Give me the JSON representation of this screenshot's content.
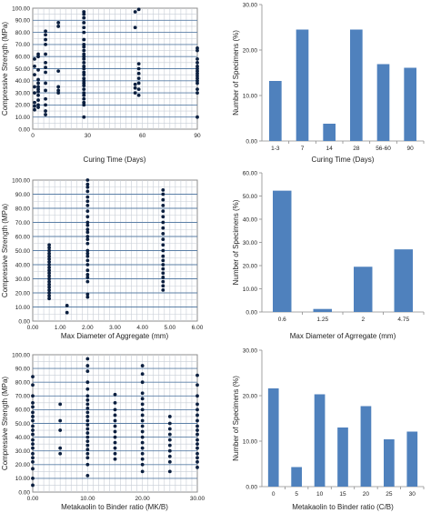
{
  "chart_data": [
    {
      "type": "scatter",
      "xlabel": "Curing Time (Days)",
      "ylabel": "Compressive Strength (MPa)",
      "xlim": [
        0,
        90
      ],
      "ylim": [
        0,
        100
      ],
      "xticks": [
        "0",
        "30",
        "60",
        "90"
      ],
      "yticks": [
        "0.00",
        "10.00",
        "20.00",
        "30.00",
        "40.00",
        "50.00",
        "60.00",
        "70.00",
        "80.00",
        "90.00",
        "100.00"
      ],
      "grid": true,
      "marker_color": "#0b1f3f",
      "points": [
        [
          1,
          16
        ],
        [
          1,
          19
        ],
        [
          1,
          22
        ],
        [
          1,
          30
        ],
        [
          1,
          35
        ],
        [
          1,
          45
        ],
        [
          1,
          52
        ],
        [
          1,
          58
        ],
        [
          3,
          18
        ],
        [
          3,
          20
        ],
        [
          3,
          24
        ],
        [
          3,
          28
        ],
        [
          3,
          31
        ],
        [
          3,
          33
        ],
        [
          3,
          35
        ],
        [
          3,
          38
        ],
        [
          3,
          41
        ],
        [
          3,
          49
        ],
        [
          3,
          60
        ],
        [
          3,
          62
        ],
        [
          7,
          12
        ],
        [
          7,
          15
        ],
        [
          7,
          20
        ],
        [
          7,
          25
        ],
        [
          7,
          32
        ],
        [
          7,
          38
        ],
        [
          7,
          47
        ],
        [
          7,
          51
        ],
        [
          7,
          55
        ],
        [
          7,
          62
        ],
        [
          7,
          70
        ],
        [
          7,
          74
        ],
        [
          7,
          78
        ],
        [
          7,
          81
        ],
        [
          14,
          30
        ],
        [
          14,
          32
        ],
        [
          14,
          35
        ],
        [
          14,
          48
        ],
        [
          14,
          85
        ],
        [
          14,
          88
        ],
        [
          28,
          10
        ],
        [
          28,
          20
        ],
        [
          28,
          22
        ],
        [
          28,
          25
        ],
        [
          28,
          28
        ],
        [
          28,
          30
        ],
        [
          28,
          33
        ],
        [
          28,
          36
        ],
        [
          28,
          38
        ],
        [
          28,
          40
        ],
        [
          28,
          42
        ],
        [
          28,
          45
        ],
        [
          28,
          47
        ],
        [
          28,
          50
        ],
        [
          28,
          52
        ],
        [
          28,
          55
        ],
        [
          28,
          58
        ],
        [
          28,
          60
        ],
        [
          28,
          62
        ],
        [
          28,
          65
        ],
        [
          28,
          68
        ],
        [
          28,
          70
        ],
        [
          28,
          74
        ],
        [
          28,
          80
        ],
        [
          28,
          84
        ],
        [
          28,
          88
        ],
        [
          28,
          92
        ],
        [
          28,
          95
        ],
        [
          28,
          97
        ],
        [
          56,
          30
        ],
        [
          56,
          34
        ],
        [
          56,
          37
        ],
        [
          56,
          84
        ],
        [
          56,
          97
        ],
        [
          58,
          28
        ],
        [
          58,
          33
        ],
        [
          58,
          38
        ],
        [
          58,
          42
        ],
        [
          58,
          46
        ],
        [
          58,
          50
        ],
        [
          58,
          54
        ],
        [
          58,
          99
        ],
        [
          90,
          10
        ],
        [
          90,
          30
        ],
        [
          90,
          33
        ],
        [
          90,
          38
        ],
        [
          90,
          40
        ],
        [
          90,
          42
        ],
        [
          90,
          44
        ],
        [
          90,
          46
        ],
        [
          90,
          48
        ],
        [
          90,
          50
        ],
        [
          90,
          52
        ],
        [
          90,
          55
        ],
        [
          90,
          58
        ],
        [
          90,
          65
        ],
        [
          90,
          67
        ]
      ]
    },
    {
      "type": "bar",
      "categories": [
        "1-3",
        "7",
        "14",
        "28",
        "56-60",
        "90"
      ],
      "values": [
        13.2,
        24.5,
        3.8,
        24.5,
        16.9,
        16.1
      ],
      "xlabel": "Curing Time (Days)",
      "ylabel": "Number of Specimens (%)",
      "ylim": [
        0,
        30
      ],
      "yticks": [
        "0.00",
        "10.00",
        "20.00",
        "30.00"
      ],
      "bar_color": "#4f81bd"
    },
    {
      "type": "scatter",
      "xlabel": "Max Diameter of Aggregate (mm)",
      "ylabel": "Compressive Strength (MPa)",
      "xlim": [
        0,
        6
      ],
      "ylim": [
        0,
        100
      ],
      "xticks": [
        "0.00",
        "1.00",
        "2.00",
        "3.00",
        "4.00",
        "5.00",
        "6.00"
      ],
      "yticks": [
        "0.00",
        "10.00",
        "20.00",
        "30.00",
        "40.00",
        "50.00",
        "60.00",
        "70.00",
        "80.00",
        "90.00",
        "100.00"
      ],
      "grid": true,
      "marker_color": "#0b1f3f",
      "points": [
        [
          0.6,
          16
        ],
        [
          0.6,
          18
        ],
        [
          0.6,
          20
        ],
        [
          0.6,
          22
        ],
        [
          0.6,
          24
        ],
        [
          0.6,
          26
        ],
        [
          0.6,
          28
        ],
        [
          0.6,
          30
        ],
        [
          0.6,
          32
        ],
        [
          0.6,
          34
        ],
        [
          0.6,
          36
        ],
        [
          0.6,
          38
        ],
        [
          0.6,
          40
        ],
        [
          0.6,
          42
        ],
        [
          0.6,
          44
        ],
        [
          0.6,
          46
        ],
        [
          0.6,
          48
        ],
        [
          0.6,
          50
        ],
        [
          0.6,
          52
        ],
        [
          0.6,
          54
        ],
        [
          1.25,
          6
        ],
        [
          1.25,
          11
        ],
        [
          2,
          17
        ],
        [
          2,
          19
        ],
        [
          2,
          28
        ],
        [
          2,
          31
        ],
        [
          2,
          33
        ],
        [
          2,
          36
        ],
        [
          2,
          40
        ],
        [
          2,
          43
        ],
        [
          2,
          46
        ],
        [
          2,
          48
        ],
        [
          2,
          50
        ],
        [
          2,
          55
        ],
        [
          2,
          58
        ],
        [
          2,
          60
        ],
        [
          2,
          63
        ],
        [
          2,
          65
        ],
        [
          2,
          68
        ],
        [
          2,
          70
        ],
        [
          2,
          74
        ],
        [
          2,
          78
        ],
        [
          2,
          82
        ],
        [
          2,
          85
        ],
        [
          2,
          88
        ],
        [
          2,
          92
        ],
        [
          2,
          95
        ],
        [
          2,
          97
        ],
        [
          2,
          100
        ],
        [
          4.75,
          22
        ],
        [
          4.75,
          25
        ],
        [
          4.75,
          28
        ],
        [
          4.75,
          31
        ],
        [
          4.75,
          34
        ],
        [
          4.75,
          37
        ],
        [
          4.75,
          40
        ],
        [
          4.75,
          43
        ],
        [
          4.75,
          46
        ],
        [
          4.75,
          50
        ],
        [
          4.75,
          54
        ],
        [
          4.75,
          58
        ],
        [
          4.75,
          62
        ],
        [
          4.75,
          66
        ],
        [
          4.75,
          70
        ],
        [
          4.75,
          74
        ],
        [
          4.75,
          78
        ],
        [
          4.75,
          82
        ],
        [
          4.75,
          86
        ],
        [
          4.75,
          90
        ],
        [
          4.75,
          93
        ]
      ]
    },
    {
      "type": "bar",
      "categories": [
        "0.6",
        "1.25",
        "2",
        "4.75"
      ],
      "values": [
        52.3,
        1.3,
        19.5,
        27.0
      ],
      "xlabel": "Max Diameter of Agrregate (mm)",
      "ylabel": "Number of Specimens (%)",
      "ylim": [
        0,
        60
      ],
      "yticks": [
        "0.00",
        "10.00",
        "20.00",
        "30.00",
        "40.00",
        "50.00",
        "60.00"
      ],
      "bar_color": "#4f81bd"
    },
    {
      "type": "scatter",
      "xlabel": "Metakaolin to Binder ratio (MK/B)",
      "ylabel": "Compressive Strength (MPa)",
      "xlim": [
        0,
        30
      ],
      "ylim": [
        0,
        100
      ],
      "xticks": [
        "0.00",
        "10.00",
        "20.00",
        "30.00"
      ],
      "yticks": [
        "0.00",
        "10.00",
        "20.00",
        "30.00",
        "40.00",
        "50.00",
        "60.00",
        "70.00",
        "80.00",
        "90.00",
        "100.00"
      ],
      "grid": true,
      "marker_color": "#0b1f3f",
      "points": [
        [
          0,
          5
        ],
        [
          0,
          10
        ],
        [
          0,
          17
        ],
        [
          0,
          22
        ],
        [
          0,
          25
        ],
        [
          0,
          28
        ],
        [
          0,
          32
        ],
        [
          0,
          35
        ],
        [
          0,
          38
        ],
        [
          0,
          42
        ],
        [
          0,
          45
        ],
        [
          0,
          48
        ],
        [
          0,
          52
        ],
        [
          0,
          55
        ],
        [
          0,
          58
        ],
        [
          0,
          62
        ],
        [
          0,
          65
        ],
        [
          0,
          70
        ],
        [
          0,
          78
        ],
        [
          0,
          84
        ],
        [
          5,
          28
        ],
        [
          5,
          32
        ],
        [
          5,
          45
        ],
        [
          5,
          52
        ],
        [
          5,
          64
        ],
        [
          10,
          12
        ],
        [
          10,
          20
        ],
        [
          10,
          25
        ],
        [
          10,
          28
        ],
        [
          10,
          31
        ],
        [
          10,
          34
        ],
        [
          10,
          37
        ],
        [
          10,
          40
        ],
        [
          10,
          43
        ],
        [
          10,
          46
        ],
        [
          10,
          49
        ],
        [
          10,
          52
        ],
        [
          10,
          55
        ],
        [
          10,
          58
        ],
        [
          10,
          61
        ],
        [
          10,
          64
        ],
        [
          10,
          67
        ],
        [
          10,
          70
        ],
        [
          10,
          75
        ],
        [
          10,
          80
        ],
        [
          10,
          88
        ],
        [
          10,
          92
        ],
        [
          10,
          97
        ],
        [
          15,
          24
        ],
        [
          15,
          28
        ],
        [
          15,
          32
        ],
        [
          15,
          36
        ],
        [
          15,
          40
        ],
        [
          15,
          44
        ],
        [
          15,
          48
        ],
        [
          15,
          52
        ],
        [
          15,
          56
        ],
        [
          15,
          60
        ],
        [
          15,
          65
        ],
        [
          15,
          71
        ],
        [
          20,
          15
        ],
        [
          20,
          20
        ],
        [
          20,
          24
        ],
        [
          20,
          28
        ],
        [
          20,
          32
        ],
        [
          20,
          36
        ],
        [
          20,
          40
        ],
        [
          20,
          44
        ],
        [
          20,
          48
        ],
        [
          20,
          52
        ],
        [
          20,
          56
        ],
        [
          20,
          60
        ],
        [
          20,
          64
        ],
        [
          20,
          68
        ],
        [
          20,
          72
        ],
        [
          20,
          80
        ],
        [
          20,
          86
        ],
        [
          20,
          92
        ],
        [
          25,
          15
        ],
        [
          25,
          22
        ],
        [
          25,
          26
        ],
        [
          25,
          30
        ],
        [
          25,
          34
        ],
        [
          25,
          38
        ],
        [
          25,
          42
        ],
        [
          25,
          46
        ],
        [
          25,
          50
        ],
        [
          25,
          55
        ],
        [
          30,
          18
        ],
        [
          30,
          22
        ],
        [
          30,
          25
        ],
        [
          30,
          28
        ],
        [
          30,
          32
        ],
        [
          30,
          35
        ],
        [
          30,
          38
        ],
        [
          30,
          42
        ],
        [
          30,
          45
        ],
        [
          30,
          48
        ],
        [
          30,
          52
        ],
        [
          30,
          56
        ],
        [
          30,
          60
        ],
        [
          30,
          64
        ],
        [
          30,
          70
        ],
        [
          30,
          78
        ],
        [
          30,
          85
        ]
      ]
    },
    {
      "type": "bar",
      "categories": [
        "0",
        "5",
        "10",
        "15",
        "20",
        "25",
        "30"
      ],
      "values": [
        21.6,
        4.3,
        20.3,
        13.0,
        17.7,
        10.4,
        12.1
      ],
      "xlabel": "Metakaolin to Binder ratio (C/B)",
      "ylabel": "Number of Specimens (%)",
      "ylim": [
        0,
        30
      ],
      "yticks": [
        "0.00",
        "10.00",
        "20.00",
        "30.00"
      ],
      "bar_color": "#4f81bd"
    }
  ]
}
